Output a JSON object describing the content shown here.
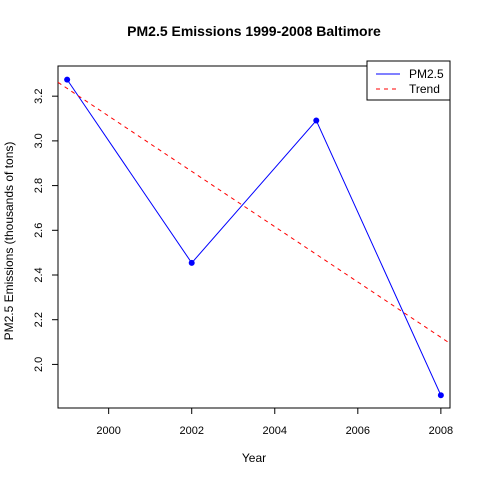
{
  "chart_data": {
    "type": "line",
    "title": "PM2.5 Emissions 1999-2008 Baltimore",
    "xlabel": "Year",
    "ylabel": "PM2.5 Emissions (thousands of tons)",
    "xlim": [
      1998.78,
      2008.22
    ],
    "ylim": [
      1.805,
      3.335
    ],
    "x_ticks": [
      2000,
      2002,
      2004,
      2006,
      2008
    ],
    "y_ticks": [
      2.0,
      2.2,
      2.4,
      2.6,
      2.8,
      3.0,
      3.2
    ],
    "x_tick_labels": [
      "2000",
      "2002",
      "2004",
      "2006",
      "2008"
    ],
    "y_tick_labels": [
      "2.0",
      "2.2",
      "2.4",
      "2.6",
      "2.8",
      "3.0",
      "3.2"
    ],
    "grid": false,
    "legend_position": "top-right",
    "series": [
      {
        "name": "PM2.5",
        "kind": "line-with-points",
        "color": "#0000ff",
        "x": [
          1999,
          2002,
          2005,
          2008
        ],
        "y": [
          3.274,
          2.454,
          3.091,
          1.862
        ]
      },
      {
        "name": "Trend",
        "kind": "dashed-line",
        "color": "#ff0000",
        "x": [
          1998.78,
          2008.22
        ],
        "y": [
          3.262,
          2.094
        ]
      }
    ]
  }
}
